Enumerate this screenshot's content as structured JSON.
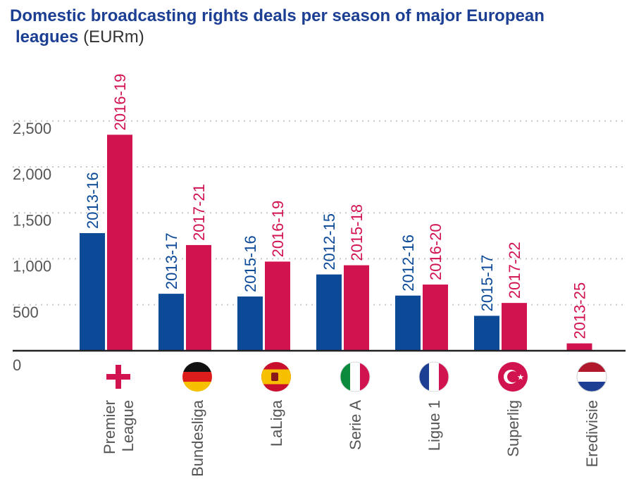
{
  "title": {
    "line1": "Domestic broadcasting rights deals per season of major European",
    "line2": "leagues",
    "unit": "(EURm)"
  },
  "colors": {
    "previous": "#0c4a97",
    "current": "#d1134f",
    "grid": "#c8c8c8",
    "axis": "#222222"
  },
  "chart_data": {
    "type": "bar",
    "title": "Domestic broadcasting rights deals per season of major European leagues (EURm)",
    "ylim": [
      0,
      2800
    ],
    "yticks": [
      0,
      500,
      1000,
      1500,
      2000,
      2500
    ],
    "ytick_labels": [
      "0",
      "500",
      "1,000",
      "1,500",
      "2,000",
      "2,500"
    ],
    "grid": "dotted horizontal",
    "categories": [
      {
        "label": "Premier\nLeague",
        "flag": "england-flag-icon",
        "bars": [
          {
            "period": "2013-16",
            "value": 1280,
            "series": "previous"
          },
          {
            "period": "2016-19",
            "value": 2350,
            "series": "current"
          }
        ]
      },
      {
        "label": "Bundesliga",
        "flag": "germany-flag-icon",
        "bars": [
          {
            "period": "2013-17",
            "value": 620,
            "series": "previous"
          },
          {
            "period": "2017-21",
            "value": 1150,
            "series": "current"
          }
        ]
      },
      {
        "label": "LaLiga",
        "flag": "spain-flag-icon",
        "bars": [
          {
            "period": "2015-16",
            "value": 590,
            "series": "previous"
          },
          {
            "period": "2016-19",
            "value": 970,
            "series": "current"
          }
        ]
      },
      {
        "label": "Serie A",
        "flag": "italy-flag-icon",
        "bars": [
          {
            "period": "2012-15",
            "value": 830,
            "series": "previous"
          },
          {
            "period": "2015-18",
            "value": 930,
            "series": "current"
          }
        ]
      },
      {
        "label": "Ligue 1",
        "flag": "france-flag-icon",
        "bars": [
          {
            "period": "2012-16",
            "value": 600,
            "series": "previous"
          },
          {
            "period": "2016-20",
            "value": 720,
            "series": "current"
          }
        ]
      },
      {
        "label": "Superlig",
        "flag": "turkey-flag-icon",
        "bars": [
          {
            "period": "2015-17",
            "value": 380,
            "series": "previous"
          },
          {
            "period": "2017-22",
            "value": 520,
            "series": "current"
          }
        ]
      },
      {
        "label": "Eredivisie",
        "flag": "netherlands-flag-icon",
        "bars": [
          {
            "period": "2013-25",
            "value": 80,
            "series": "current"
          }
        ]
      }
    ]
  }
}
